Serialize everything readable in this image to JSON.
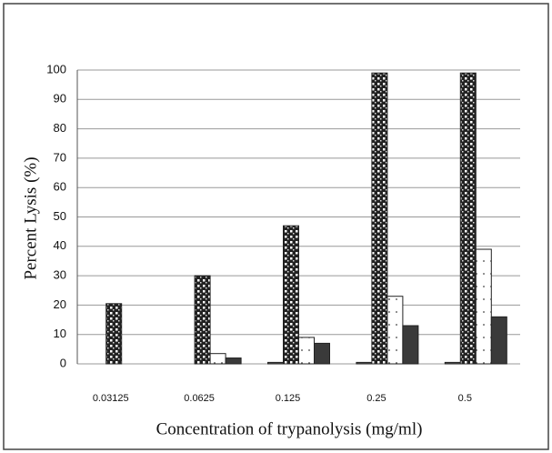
{
  "chart_data": {
    "type": "bar",
    "x_label": "Concentration of trypanolysis (mg/ml)",
    "y_label": "Percent Lysis (%)",
    "categories": [
      "0.03125",
      "0.0625",
      "0.125",
      "0.25",
      "0.5"
    ],
    "series": [
      {
        "color": "#555555",
        "values": [
          0,
          0,
          0.5,
          0.5,
          0.5
        ]
      },
      {
        "color": "#2a2a2a",
        "values": [
          20.5,
          30,
          47,
          99,
          99
        ]
      },
      {
        "color": "#ffffff",
        "values": [
          0,
          3.5,
          9,
          23,
          39
        ]
      },
      {
        "color": "#3a3a3a",
        "values": [
          0,
          2,
          7,
          13,
          16
        ]
      }
    ],
    "ylim": [
      0,
      100
    ],
    "yticks": [
      0,
      10,
      20,
      30,
      40,
      50,
      60,
      70,
      80,
      90,
      100
    ],
    "grid": true
  }
}
